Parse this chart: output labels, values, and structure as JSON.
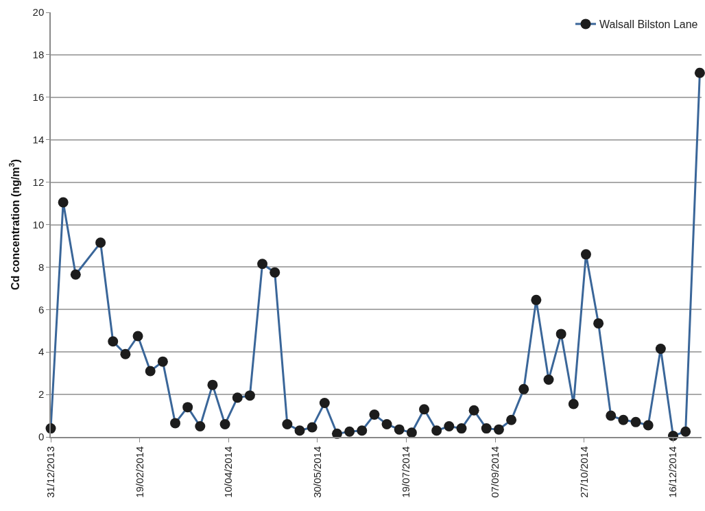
{
  "chart_data": {
    "type": "line",
    "ylabel": "Cd concentration (ng/m$^{3}$)",
    "x": [
      "2013-12-31",
      "2014-01-07",
      "2014-01-14",
      "2014-01-28",
      "2014-02-04",
      "2014-02-11",
      "2014-02-18",
      "2014-02-25",
      "2014-03-04",
      "2014-03-11",
      "2014-03-18",
      "2014-03-25",
      "2014-04-01",
      "2014-04-08",
      "2014-04-15",
      "2014-04-22",
      "2014-04-29",
      "2014-05-06",
      "2014-05-13",
      "2014-05-20",
      "2014-05-27",
      "2014-06-03",
      "2014-06-10",
      "2014-06-17",
      "2014-06-24",
      "2014-07-01",
      "2014-07-08",
      "2014-07-15",
      "2014-07-22",
      "2014-07-29",
      "2014-08-05",
      "2014-08-12",
      "2014-08-19",
      "2014-08-26",
      "2014-09-02",
      "2014-09-09",
      "2014-09-16",
      "2014-09-23",
      "2014-09-30",
      "2014-10-07",
      "2014-10-14",
      "2014-10-21",
      "2014-10-28",
      "2014-11-04",
      "2014-11-11",
      "2014-11-18",
      "2014-11-25",
      "2014-12-02",
      "2014-12-09",
      "2014-12-16",
      "2014-12-23",
      "2014-12-31"
    ],
    "series": [
      {
        "name": "Walsall Bilston Lane",
        "color": "#3a6699",
        "values": [
          0.4,
          11.05,
          7.65,
          9.15,
          4.5,
          3.9,
          4.75,
          3.1,
          3.55,
          0.65,
          1.4,
          0.5,
          2.45,
          0.6,
          1.85,
          1.95,
          8.15,
          7.75,
          0.6,
          0.3,
          0.45,
          1.6,
          0.15,
          0.25,
          0.3,
          1.05,
          0.6,
          0.35,
          0.2,
          1.3,
          0.3,
          0.5,
          0.4,
          1.25,
          0.4,
          0.35,
          0.8,
          2.25,
          6.45,
          2.7,
          4.85,
          1.55,
          8.6,
          5.35,
          1.0,
          0.8,
          0.7,
          0.55,
          4.15,
          0.05,
          0.25,
          17.15
        ]
      }
    ],
    "xlim": [
      "2013-12-31",
      "2015-01-01"
    ],
    "xticks": [
      {
        "value": "2013-12-31",
        "label": "31/12/2013"
      },
      {
        "value": "2014-02-19",
        "label": "19/02/2014"
      },
      {
        "value": "2014-04-10",
        "label": "10/04/2014"
      },
      {
        "value": "2014-05-30",
        "label": "30/05/2014"
      },
      {
        "value": "2014-07-19",
        "label": "19/07/2014"
      },
      {
        "value": "2014-09-07",
        "label": "07/09/2014"
      },
      {
        "value": "2014-10-27",
        "label": "27/10/2014"
      },
      {
        "value": "2014-12-16",
        "label": "16/12/2014"
      }
    ],
    "ylim": [
      0,
      20
    ],
    "yticks": [
      0,
      2,
      4,
      6,
      8,
      10,
      12,
      14,
      16,
      18,
      20
    ],
    "grid": "y",
    "legend": "top right",
    "marker": "circle",
    "line_style": "solid"
  }
}
